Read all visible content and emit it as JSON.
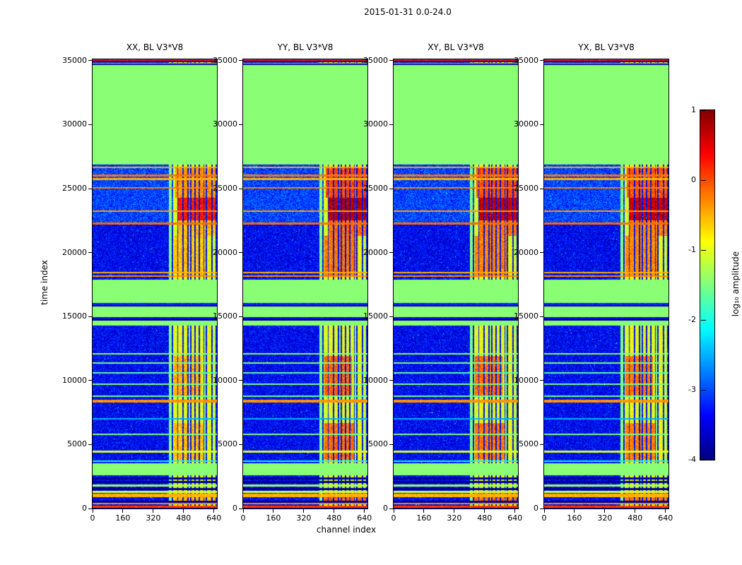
{
  "chart_data": {
    "type": "heatmap",
    "title": "2015-01-31 0.0-24.0",
    "xlabel": "channel index",
    "ylabel": "time index",
    "x_range": [
      0,
      656
    ],
    "y_range": [
      0,
      35100
    ],
    "x_ticks": [
      0,
      160,
      320,
      480,
      640
    ],
    "y_ticks": [
      0,
      5000,
      10000,
      15000,
      20000,
      25000,
      30000,
      35000
    ],
    "colormap": "jet",
    "colorbar": {
      "label": "log₁₀ amplitude",
      "ticks": [
        1,
        0,
        -1,
        -2,
        -3,
        -4
      ],
      "range": [
        -4,
        1
      ]
    },
    "panels": [
      {
        "title": "XX, BL V3*V8",
        "blob_boost": 0.0,
        "seed": 101
      },
      {
        "title": "YY, BL V3*V8",
        "blob_boost": 0.4,
        "seed": 202
      },
      {
        "title": "XY, BL V3*V8",
        "blob_boost": 0.35,
        "seed": 303
      },
      {
        "title": "YX, BL V3*V8",
        "blob_boost": 0.3,
        "seed": 404
      }
    ],
    "content": {
      "background_amplitude": -3.4,
      "noise_amplitude": 0.45,
      "speckle_rate": 0.004,
      "speckle_boost": 1.3,
      "flagged_amplitude": -1.45,
      "flagged_bands": [
        [
          26850,
          34680
        ],
        [
          14280,
          17900
        ],
        [
          2600,
          3530
        ]
      ],
      "stripes": [
        [
          404,
          418,
          -1.5
        ],
        [
          424,
          448,
          -1.05
        ],
        [
          452,
          474,
          -0.95
        ],
        [
          480,
          500,
          -1.0
        ],
        [
          506,
          514,
          -1.35
        ],
        [
          520,
          538,
          -0.95
        ],
        [
          544,
          560,
          -1.05
        ],
        [
          566,
          584,
          -1.0
        ],
        [
          590,
          598,
          -1.4
        ],
        [
          604,
          628,
          -0.95
        ],
        [
          634,
          650,
          -1.15
        ]
      ],
      "blobs": [
        {
          "t": [
            22500,
            24300
          ],
          "ch": [
            448,
            656
          ],
          "amp": 0.3,
          "on_stripes": true
        },
        {
          "t": [
            24300,
            26650
          ],
          "ch": [
            436,
            656
          ],
          "amp": -0.35,
          "on_stripes": true
        },
        {
          "t": [
            21300,
            22500
          ],
          "ch": [
            448,
            656
          ],
          "amp": -0.55,
          "on_stripes": true
        },
        {
          "t": [
            18100,
            21300
          ],
          "ch": [
            430,
            600
          ],
          "amp": -0.6,
          "on_stripes": true
        },
        {
          "t": [
            8800,
            11900
          ],
          "ch": [
            428,
            575
          ],
          "amp": -0.5,
          "on_stripes": true
        },
        {
          "t": [
            3800,
            6700
          ],
          "ch": [
            428,
            585
          ],
          "amp": -0.55,
          "on_stripes": true
        },
        {
          "t": [
            400,
            1300
          ],
          "ch": [
            420,
            656
          ],
          "amp": -0.5,
          "on_stripes": true
        },
        {
          "t": [
            22300,
            26800
          ],
          "ch": [
            0,
            448
          ],
          "amp": -3.05,
          "on_stripes": false
        }
      ],
      "hlines": [
        [
          35060,
          120,
          0.3
        ],
        [
          34920,
          120,
          -3.6
        ],
        [
          34800,
          100,
          -0.6
        ],
        [
          34710,
          80,
          -3.8
        ],
        [
          26650,
          140,
          -0.45
        ],
        [
          26020,
          150,
          -0.2
        ],
        [
          25750,
          130,
          -0.5
        ],
        [
          25060,
          150,
          -0.25
        ],
        [
          23230,
          130,
          -0.4
        ],
        [
          22290,
          170,
          -0.15
        ],
        [
          18430,
          130,
          -0.5
        ],
        [
          18150,
          130,
          -0.3
        ],
        [
          15990,
          140,
          -3.2
        ],
        [
          15830,
          120,
          -3.9
        ],
        [
          14900,
          130,
          -3.3
        ],
        [
          14740,
          160,
          -3.9
        ],
        [
          12100,
          120,
          -1.45
        ],
        [
          11370,
          110,
          -1.5
        ],
        [
          10600,
          100,
          -1.7
        ],
        [
          9720,
          110,
          -1.5
        ],
        [
          8780,
          100,
          -1.6
        ],
        [
          8400,
          200,
          -0.35
        ],
        [
          7020,
          120,
          -2.5
        ],
        [
          5810,
          110,
          -1.5
        ],
        [
          4430,
          150,
          -1.1
        ],
        [
          3700,
          100,
          -2.1
        ],
        [
          2350,
          130,
          -3.9
        ],
        [
          2080,
          150,
          -3.9
        ],
        [
          1800,
          130,
          -1.3
        ],
        [
          1520,
          120,
          -3.9
        ],
        [
          1300,
          130,
          -1.1
        ],
        [
          1000,
          280,
          -0.5
        ],
        [
          530,
          150,
          -3.9
        ],
        [
          370,
          130,
          -0.3
        ],
        [
          150,
          170,
          0.1
        ],
        [
          30,
          80,
          -3.8
        ]
      ]
    }
  }
}
